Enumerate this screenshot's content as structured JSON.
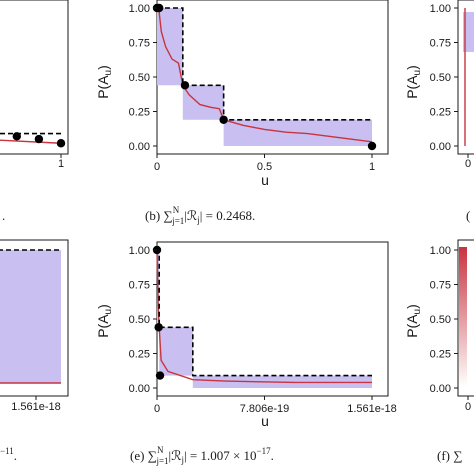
{
  "colors": {
    "band": "#c9bff0",
    "line": "#c8343f",
    "dash": "#000000",
    "point": "#000000",
    "axis": "#1a1a1a"
  },
  "chart_data": [
    {
      "id": "a",
      "type": "line",
      "panel": "top-left",
      "xticks": [
        "1"
      ],
      "xlim": [
        0,
        1
      ],
      "ylim": [
        0,
        1
      ],
      "points": [
        [
          0.55,
          0.1
        ],
        [
          0.7,
          0.09
        ],
        [
          0.8,
          0.07
        ],
        [
          0.9,
          0.05
        ],
        [
          1.0,
          0.02
        ]
      ],
      "red": [
        [
          0.0,
          0.07
        ],
        [
          0.5,
          0.06
        ],
        [
          1.0,
          0.02
        ]
      ],
      "caption": ""
    },
    {
      "id": "b",
      "type": "line",
      "panel": "top-middle",
      "ylabel": "P(A",
      "ylabel_sub": "u",
      "xlabel": "u",
      "xlim": [
        0,
        1
      ],
      "ylim": [
        0,
        1
      ],
      "xticks": [
        "0",
        "0.5",
        "1"
      ],
      "xtick_values": [
        0,
        0.5,
        1
      ],
      "yticks": [
        "0.00",
        "0.25",
        "0.50",
        "0.75",
        "1.00"
      ],
      "ytick_values": [
        0,
        0.25,
        0.5,
        0.75,
        1
      ],
      "upper_step": [
        [
          0.0,
          1.0
        ],
        [
          0.12,
          1.0
        ],
        [
          0.12,
          0.44
        ],
        [
          0.31,
          0.44
        ],
        [
          0.31,
          0.19
        ],
        [
          1.0,
          0.19
        ]
      ],
      "lower_step": [
        [
          0.0,
          0.44
        ],
        [
          0.12,
          0.44
        ],
        [
          0.12,
          0.19
        ],
        [
          0.31,
          0.19
        ],
        [
          0.31,
          0.0
        ],
        [
          1.0,
          0.0
        ]
      ],
      "red": [
        [
          0.0,
          1.0
        ],
        [
          0.01,
          0.97
        ],
        [
          0.02,
          0.83
        ],
        [
          0.04,
          0.72
        ],
        [
          0.07,
          0.63
        ],
        [
          0.1,
          0.6
        ],
        [
          0.12,
          0.44
        ],
        [
          0.15,
          0.37
        ],
        [
          0.2,
          0.3
        ],
        [
          0.25,
          0.28
        ],
        [
          0.29,
          0.27
        ],
        [
          0.31,
          0.19
        ],
        [
          0.4,
          0.15
        ],
        [
          0.5,
          0.12
        ],
        [
          0.6,
          0.1
        ],
        [
          0.7,
          0.09
        ],
        [
          0.8,
          0.07
        ],
        [
          0.9,
          0.05
        ],
        [
          1.0,
          0.03
        ]
      ],
      "points": [
        [
          0.0,
          1.0
        ],
        [
          0.01,
          1.0
        ],
        [
          0.13,
          0.44
        ],
        [
          0.31,
          0.19
        ],
        [
          1.0,
          0.0
        ]
      ],
      "caption_pre": "(b) ∑",
      "caption_sup": "N",
      "caption_sub": "j=1",
      "caption_post": "|ℛ",
      "caption_sub2": "j",
      "caption_val": "| = 0.2468."
    },
    {
      "id": "c",
      "type": "line",
      "panel": "top-right",
      "ylabel": "P(A",
      "ylabel_sub": "u",
      "yticks": [
        "0.00",
        "0.25",
        "0.50",
        "0.75",
        "1.00"
      ],
      "ytick_values": [
        0,
        0.25,
        0.5,
        0.75,
        1
      ],
      "xticks": [
        "0"
      ],
      "caption_pre": "("
    },
    {
      "id": "d",
      "type": "line",
      "panel": "bottom-left",
      "xticks": [
        "1.561e-18"
      ],
      "caption_pre": "−11",
      "caption_post": "."
    },
    {
      "id": "e",
      "type": "line",
      "panel": "bottom-middle",
      "ylabel": "P(A",
      "ylabel_sub": "u",
      "xlabel": "u",
      "xlim": [
        0,
        1.561e-18
      ],
      "ylim": [
        0,
        1
      ],
      "xticks": [
        "0",
        "7.806e-19",
        "1.561e-18"
      ],
      "xtick_values": [
        0,
        7.806e-19,
        1.561e-18
      ],
      "yticks": [
        "0.00",
        "0.25",
        "0.50",
        "0.75",
        "1.00"
      ],
      "ytick_values": [
        0,
        0.25,
        0.5,
        0.75,
        1
      ],
      "upper_step": [
        [
          0.0,
          1.0
        ],
        [
          1.6e-20,
          1.0
        ],
        [
          1.6e-20,
          0.44
        ],
        [
          2.6e-19,
          0.44
        ],
        [
          2.6e-19,
          0.09
        ],
        [
          1.561e-18,
          0.09
        ]
      ],
      "lower_step": [
        [
          0.0,
          0.44
        ],
        [
          1.6e-20,
          0.44
        ],
        [
          1.6e-20,
          0.09
        ],
        [
          2.6e-19,
          0.09
        ],
        [
          2.6e-19,
          0.0
        ],
        [
          1.561e-18,
          0.0
        ]
      ],
      "red": [
        [
          0.0,
          1.0
        ],
        [
          8e-21,
          0.6
        ],
        [
          1.6e-20,
          0.44
        ],
        [
          3e-20,
          0.2
        ],
        [
          8e-20,
          0.12
        ],
        [
          2.6e-19,
          0.06
        ],
        [
          5e-19,
          0.05
        ],
        [
          1e-18,
          0.04
        ],
        [
          1.561e-18,
          0.04
        ]
      ],
      "points": [
        [
          0.0,
          1.0
        ],
        [
          1.2e-20,
          0.44
        ],
        [
          2.2e-20,
          0.09
        ]
      ],
      "caption_pre": "(e) ∑",
      "caption_sup": "N",
      "caption_sub": "j=1",
      "caption_post": "|ℛ",
      "caption_sub2": "j",
      "caption_val": "| = 1.007 × 10",
      "caption_exp": "−17",
      "caption_end": "."
    },
    {
      "id": "f",
      "type": "line",
      "panel": "bottom-right",
      "ylabel": "P(A",
      "ylabel_sub": "u",
      "yticks": [
        "0.00",
        "0.25",
        "0.50",
        "0.75",
        "1.00"
      ],
      "ytick_values": [
        0,
        0.25,
        0.5,
        0.75,
        1
      ],
      "xticks": [
        "0"
      ],
      "caption_pre": "(f) ∑"
    }
  ]
}
